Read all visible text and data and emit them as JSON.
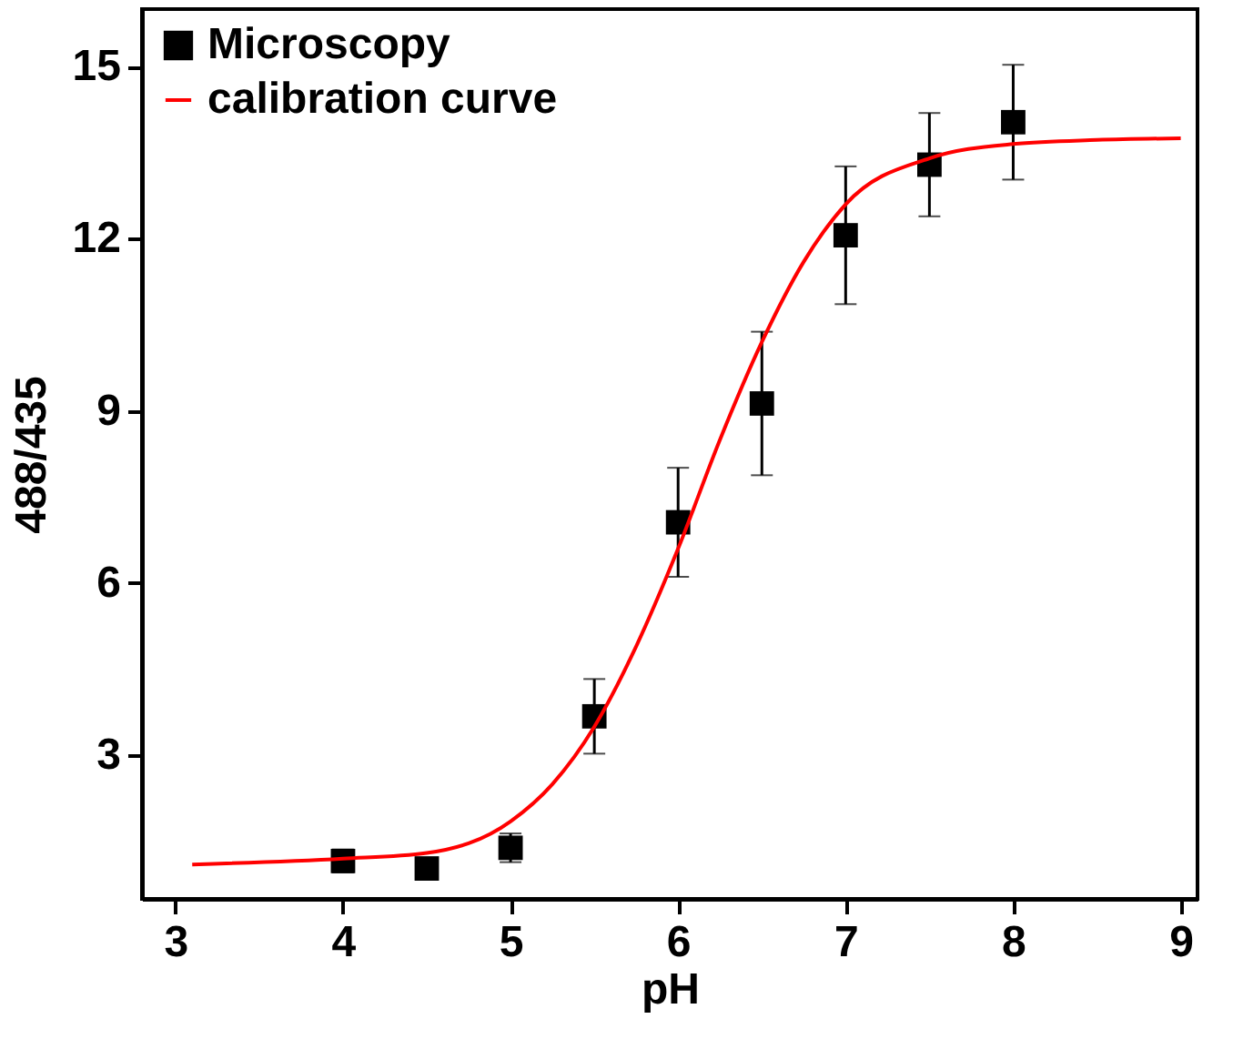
{
  "chart_data": {
    "type": "scatter",
    "xlabel": "pH",
    "ylabel": "488/435",
    "xlim": [
      2.8,
      9.1
    ],
    "ylim": [
      0.5,
      16
    ],
    "xticks": [
      3,
      4,
      5,
      6,
      7,
      8,
      9
    ],
    "yticks": [
      3,
      6,
      9,
      12,
      15
    ],
    "grid": false,
    "legend": "top left",
    "series": [
      {
        "name": "Microscopy",
        "marker": "square",
        "color": "#000000",
        "x": [
          4,
          4.5,
          5,
          5.5,
          6,
          6.5,
          7,
          7.5,
          8
        ],
        "values": [
          1.16,
          1.03,
          1.39,
          3.68,
          7.06,
          9.13,
          12.06,
          13.29,
          14.03
        ],
        "errors": [
          0.2,
          0.1,
          0.25,
          0.65,
          0.95,
          1.25,
          1.2,
          0.9,
          1.0
        ]
      },
      {
        "name": "calibration curve",
        "type": "line",
        "color": "#ff0000",
        "line_style": "solid",
        "x": [
          3.1,
          4,
          4.5,
          5,
          5.25,
          5.5,
          5.75,
          6,
          6.25,
          6.5,
          6.75,
          7,
          7.5,
          8,
          8.5,
          9
        ],
        "values": [
          1.1,
          1.2,
          1.3,
          1.85,
          2.5,
          3.5,
          4.9,
          6.6,
          8.5,
          10.2,
          11.6,
          12.6,
          13.4,
          13.65,
          13.72,
          13.75
        ]
      }
    ]
  }
}
